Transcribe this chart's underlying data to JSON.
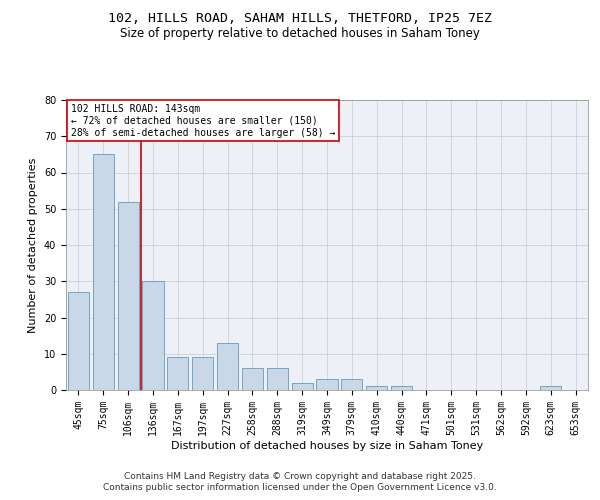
{
  "title1": "102, HILLS ROAD, SAHAM HILLS, THETFORD, IP25 7EZ",
  "title2": "Size of property relative to detached houses in Saham Toney",
  "xlabel": "Distribution of detached houses by size in Saham Toney",
  "ylabel": "Number of detached properties",
  "categories": [
    "45sqm",
    "75sqm",
    "106sqm",
    "136sqm",
    "167sqm",
    "197sqm",
    "227sqm",
    "258sqm",
    "288sqm",
    "319sqm",
    "349sqm",
    "379sqm",
    "410sqm",
    "440sqm",
    "471sqm",
    "501sqm",
    "531sqm",
    "562sqm",
    "592sqm",
    "623sqm",
    "653sqm"
  ],
  "values": [
    27,
    65,
    52,
    30,
    9,
    9,
    13,
    6,
    6,
    2,
    3,
    3,
    1,
    1,
    0,
    0,
    0,
    0,
    0,
    1,
    0
  ],
  "bar_color": "#c8d8e8",
  "bar_edge_color": "#6699bb",
  "vline_x": 2.5,
  "vline_color": "#cc0000",
  "annotation_text": "102 HILLS ROAD: 143sqm\n← 72% of detached houses are smaller (150)\n28% of semi-detached houses are larger (58) →",
  "annotation_box_color": "#cc0000",
  "ylim": [
    0,
    80
  ],
  "yticks": [
    0,
    10,
    20,
    30,
    40,
    50,
    60,
    70,
    80
  ],
  "grid_color": "#c8c8d0",
  "bg_color": "#eef0f8",
  "footer": "Contains HM Land Registry data © Crown copyright and database right 2025.\nContains public sector information licensed under the Open Government Licence v3.0.",
  "title_fontsize": 9.5,
  "subtitle_fontsize": 8.5,
  "axis_label_fontsize": 8,
  "tick_fontsize": 7,
  "annotation_fontsize": 7,
  "footer_fontsize": 6.5
}
